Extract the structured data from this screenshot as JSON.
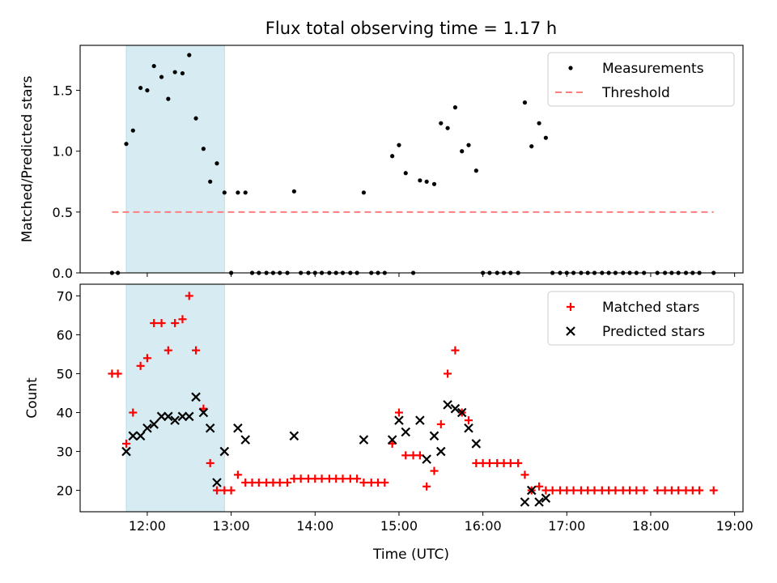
{
  "chart_data": {
    "title": "Flux total observing time = 1.17 h",
    "xlabel": "Time (UTC)",
    "x_units": "hours UTC (decimal)",
    "x_ticks": [
      12,
      13,
      14,
      15,
      16,
      17,
      18,
      19
    ],
    "x_tick_labels": [
      "12:00",
      "13:00",
      "14:00",
      "15:00",
      "16:00",
      "17:00",
      "18:00",
      "19:00"
    ],
    "xlim": [
      11.2,
      19.1
    ],
    "shaded_interval": {
      "x": [
        11.75,
        12.92
      ],
      "color": "#add8e6"
    },
    "panels": [
      {
        "type": "scatter",
        "ylabel": "Matched/Predicted stars",
        "ylim": [
          0,
          1.87
        ],
        "y_ticks": [
          0.0,
          0.5,
          1.0,
          1.5
        ],
        "y_tick_labels": [
          "0.0",
          "0.5",
          "1.0",
          "1.5"
        ],
        "legend_position": "top-right",
        "series": [
          {
            "name": "Measurements",
            "marker": "dot",
            "color": "#000000",
            "points": [
              [
                11.58,
                0
              ],
              [
                11.65,
                0
              ],
              [
                11.75,
                1.06
              ],
              [
                11.83,
                1.17
              ],
              [
                11.92,
                1.52
              ],
              [
                12.0,
                1.5
              ],
              [
                12.08,
                1.7
              ],
              [
                12.17,
                1.61
              ],
              [
                12.25,
                1.43
              ],
              [
                12.33,
                1.65
              ],
              [
                12.42,
                1.64
              ],
              [
                12.5,
                1.79
              ],
              [
                12.58,
                1.27
              ],
              [
                12.67,
                1.02
              ],
              [
                12.75,
                0.75
              ],
              [
                12.83,
                0.9
              ],
              [
                12.92,
                0.66
              ],
              [
                13.0,
                0
              ],
              [
                13.08,
                0.66
              ],
              [
                13.17,
                0.66
              ],
              [
                13.25,
                0
              ],
              [
                13.33,
                0
              ],
              [
                13.42,
                0
              ],
              [
                13.5,
                0
              ],
              [
                13.58,
                0
              ],
              [
                13.67,
                0
              ],
              [
                13.75,
                0.67
              ],
              [
                13.83,
                0
              ],
              [
                13.92,
                0
              ],
              [
                14.0,
                0
              ],
              [
                14.08,
                0
              ],
              [
                14.17,
                0
              ],
              [
                14.25,
                0
              ],
              [
                14.33,
                0
              ],
              [
                14.42,
                0
              ],
              [
                14.5,
                0
              ],
              [
                14.58,
                0.66
              ],
              [
                14.67,
                0
              ],
              [
                14.75,
                0
              ],
              [
                14.83,
                0
              ],
              [
                14.92,
                0.96
              ],
              [
                15.0,
                1.05
              ],
              [
                15.08,
                0.82
              ],
              [
                15.17,
                0
              ],
              [
                15.25,
                0.76
              ],
              [
                15.33,
                0.75
              ],
              [
                15.42,
                0.73
              ],
              [
                15.5,
                1.23
              ],
              [
                15.58,
                1.19
              ],
              [
                15.67,
                1.36
              ],
              [
                15.75,
                1.0
              ],
              [
                15.83,
                1.05
              ],
              [
                15.92,
                0.84
              ],
              [
                16.0,
                0
              ],
              [
                16.08,
                0
              ],
              [
                16.17,
                0
              ],
              [
                16.25,
                0
              ],
              [
                16.33,
                0
              ],
              [
                16.42,
                0
              ],
              [
                16.5,
                1.4
              ],
              [
                16.58,
                1.04
              ],
              [
                16.67,
                1.23
              ],
              [
                16.75,
                1.11
              ],
              [
                16.83,
                0
              ],
              [
                16.92,
                0
              ],
              [
                17.0,
                0
              ],
              [
                17.08,
                0
              ],
              [
                17.17,
                0
              ],
              [
                17.25,
                0
              ],
              [
                17.33,
                0
              ],
              [
                17.42,
                0
              ],
              [
                17.5,
                0
              ],
              [
                17.58,
                0
              ],
              [
                17.67,
                0
              ],
              [
                17.75,
                0
              ],
              [
                17.83,
                0
              ],
              [
                17.92,
                0
              ],
              [
                18.08,
                0
              ],
              [
                18.17,
                0
              ],
              [
                18.25,
                0
              ],
              [
                18.33,
                0
              ],
              [
                18.42,
                0
              ],
              [
                18.5,
                0
              ],
              [
                18.58,
                0
              ],
              [
                18.75,
                0
              ]
            ]
          },
          {
            "name": "Threshold",
            "type": "line",
            "style": "dashed",
            "color": "#ff7f7f",
            "points": [
              [
                11.58,
                0.5
              ],
              [
                18.75,
                0.5
              ]
            ]
          }
        ]
      },
      {
        "type": "scatter",
        "ylabel": "Count",
        "ylim": [
          14.5,
          73
        ],
        "y_ticks": [
          20,
          30,
          40,
          50,
          60,
          70
        ],
        "y_tick_labels": [
          "20",
          "30",
          "40",
          "50",
          "60",
          "70"
        ],
        "legend_position": "top-right",
        "series": [
          {
            "name": "Matched stars",
            "marker": "plus",
            "color": "#ff0000",
            "points": [
              [
                11.58,
                50
              ],
              [
                11.65,
                50
              ],
              [
                11.75,
                32
              ],
              [
                11.83,
                40
              ],
              [
                11.92,
                52
              ],
              [
                12.0,
                54
              ],
              [
                12.08,
                63
              ],
              [
                12.17,
                63
              ],
              [
                12.25,
                56
              ],
              [
                12.33,
                63
              ],
              [
                12.42,
                64
              ],
              [
                12.5,
                70
              ],
              [
                12.58,
                56
              ],
              [
                12.67,
                41
              ],
              [
                12.75,
                27
              ],
              [
                12.83,
                20
              ],
              [
                12.92,
                20
              ],
              [
                13.0,
                20
              ],
              [
                13.08,
                24
              ],
              [
                13.17,
                22
              ],
              [
                13.25,
                22
              ],
              [
                13.33,
                22
              ],
              [
                13.42,
                22
              ],
              [
                13.5,
                22
              ],
              [
                13.58,
                22
              ],
              [
                13.67,
                22
              ],
              [
                13.75,
                23
              ],
              [
                13.83,
                23
              ],
              [
                13.92,
                23
              ],
              [
                14.0,
                23
              ],
              [
                14.08,
                23
              ],
              [
                14.17,
                23
              ],
              [
                14.25,
                23
              ],
              [
                14.33,
                23
              ],
              [
                14.42,
                23
              ],
              [
                14.5,
                23
              ],
              [
                14.58,
                22
              ],
              [
                14.67,
                22
              ],
              [
                14.75,
                22
              ],
              [
                14.83,
                22
              ],
              [
                14.92,
                32
              ],
              [
                15.0,
                40
              ],
              [
                15.08,
                29
              ],
              [
                15.17,
                29
              ],
              [
                15.25,
                29
              ],
              [
                15.33,
                21
              ],
              [
                15.42,
                25
              ],
              [
                15.5,
                37
              ],
              [
                15.58,
                50
              ],
              [
                15.67,
                56
              ],
              [
                15.75,
                40
              ],
              [
                15.83,
                38
              ],
              [
                15.92,
                27
              ],
              [
                16.0,
                27
              ],
              [
                16.08,
                27
              ],
              [
                16.17,
                27
              ],
              [
                16.25,
                27
              ],
              [
                16.33,
                27
              ],
              [
                16.42,
                27
              ],
              [
                16.5,
                24
              ],
              [
                16.58,
                20
              ],
              [
                16.67,
                21
              ],
              [
                16.75,
                20
              ],
              [
                16.83,
                20
              ],
              [
                16.92,
                20
              ],
              [
                17.0,
                20
              ],
              [
                17.08,
                20
              ],
              [
                17.17,
                20
              ],
              [
                17.25,
                20
              ],
              [
                17.33,
                20
              ],
              [
                17.42,
                20
              ],
              [
                17.5,
                20
              ],
              [
                17.58,
                20
              ],
              [
                17.67,
                20
              ],
              [
                17.75,
                20
              ],
              [
                17.83,
                20
              ],
              [
                17.92,
                20
              ],
              [
                18.08,
                20
              ],
              [
                18.17,
                20
              ],
              [
                18.25,
                20
              ],
              [
                18.33,
                20
              ],
              [
                18.42,
                20
              ],
              [
                18.5,
                20
              ],
              [
                18.58,
                20
              ],
              [
                18.75,
                20
              ]
            ]
          },
          {
            "name": "Predicted stars",
            "marker": "x",
            "color": "#000000",
            "points": [
              [
                11.75,
                30
              ],
              [
                11.83,
                34
              ],
              [
                11.92,
                34
              ],
              [
                12.0,
                36
              ],
              [
                12.08,
                37
              ],
              [
                12.17,
                39
              ],
              [
                12.25,
                39
              ],
              [
                12.33,
                38
              ],
              [
                12.42,
                39
              ],
              [
                12.5,
                39
              ],
              [
                12.58,
                44
              ],
              [
                12.67,
                40
              ],
              [
                12.75,
                36
              ],
              [
                12.83,
                22
              ],
              [
                12.92,
                30
              ],
              [
                13.08,
                36
              ],
              [
                13.17,
                33
              ],
              [
                13.75,
                34
              ],
              [
                14.58,
                33
              ],
              [
                14.92,
                33
              ],
              [
                15.0,
                38
              ],
              [
                15.08,
                35
              ],
              [
                15.25,
                38
              ],
              [
                15.33,
                28
              ],
              [
                15.42,
                34
              ],
              [
                15.5,
                30
              ],
              [
                15.58,
                42
              ],
              [
                15.67,
                41
              ],
              [
                15.75,
                40
              ],
              [
                15.83,
                36
              ],
              [
                15.92,
                32
              ],
              [
                16.5,
                17
              ],
              [
                16.58,
                20
              ],
              [
                16.67,
                17
              ],
              [
                16.75,
                18
              ]
            ]
          }
        ]
      }
    ]
  }
}
